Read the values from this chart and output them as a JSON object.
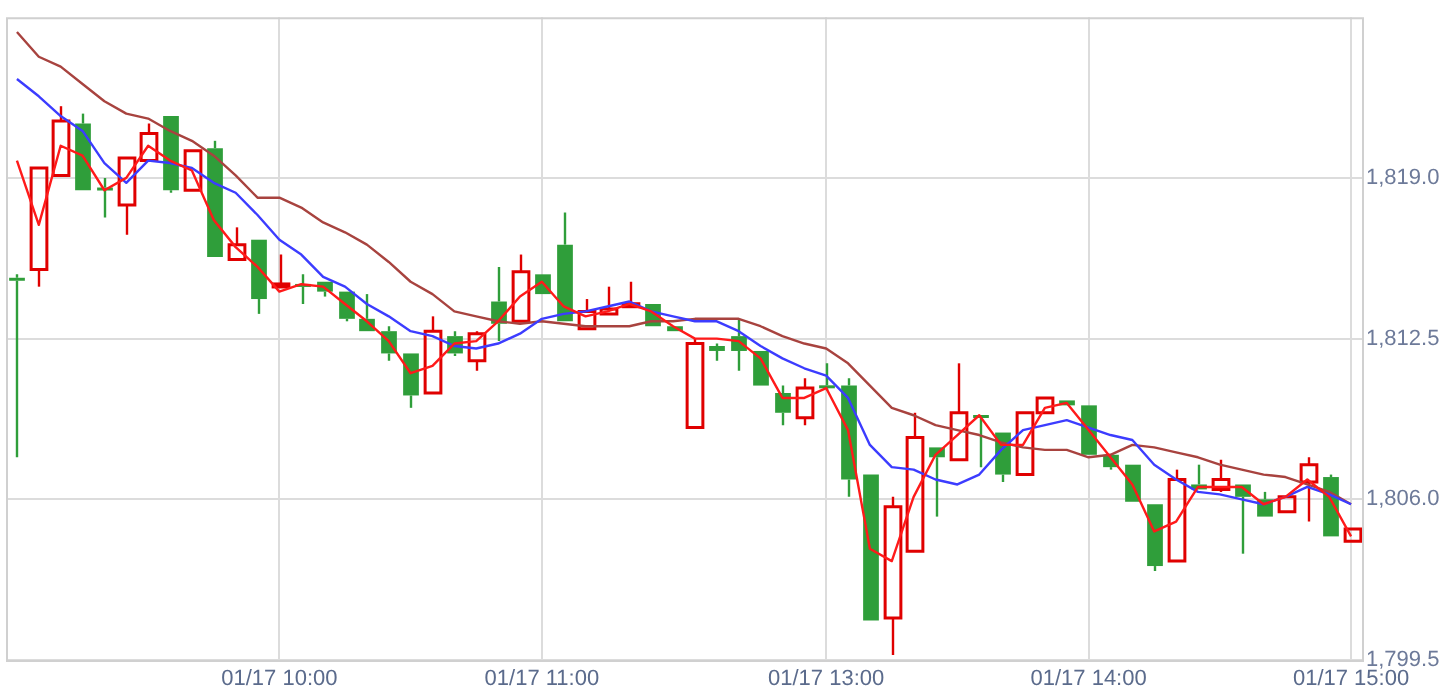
{
  "chart_data": {
    "type": "candlestick",
    "categories": [
      null,
      null,
      null,
      null,
      null,
      null,
      null,
      null,
      null,
      null,
      null,
      null,
      "01/17 10:00",
      null,
      null,
      null,
      null,
      null,
      null,
      null,
      null,
      null,
      null,
      null,
      "01/17 11:00",
      null,
      null,
      null,
      null,
      null,
      null,
      null,
      null,
      null,
      null,
      null,
      null,
      "01/17 13:00",
      null,
      null,
      null,
      null,
      null,
      null,
      null,
      null,
      null,
      null,
      null,
      "01/17 14:00",
      null,
      null,
      null,
      null,
      null,
      null,
      null,
      null,
      null,
      null,
      null,
      "01/17 15:00"
    ],
    "ohlc": [
      [
        1814.9,
        1815.1,
        1807.7,
        1814.9
      ],
      [
        1815.3,
        1819.4,
        1814.6,
        1819.4
      ],
      [
        1819.1,
        1821.9,
        1819.1,
        1821.3
      ],
      [
        1821.2,
        1821.6,
        1818.5,
        1818.5
      ],
      [
        1818.6,
        1819.0,
        1817.4,
        1818.5
      ],
      [
        1817.9,
        1819.8,
        1816.7,
        1819.8
      ],
      [
        1819.7,
        1821.2,
        1819.7,
        1820.8
      ],
      [
        1821.5,
        1821.5,
        1818.4,
        1818.5
      ],
      [
        1818.5,
        1820.1,
        1818.5,
        1820.1
      ],
      [
        1820.2,
        1820.5,
        1815.8,
        1815.8
      ],
      [
        1815.7,
        1817.0,
        1815.7,
        1816.3
      ],
      [
        1816.5,
        1816.5,
        1813.5,
        1814.1
      ],
      [
        1814.6,
        1815.9,
        1814.6,
        1814.7
      ],
      [
        1814.7,
        1815.1,
        1813.9,
        1814.6
      ],
      [
        1814.8,
        1814.8,
        1814.2,
        1814.4
      ],
      [
        1814.4,
        1814.4,
        1813.2,
        1813.3
      ],
      [
        1813.3,
        1814.3,
        1812.8,
        1812.8
      ],
      [
        1812.8,
        1813.0,
        1811.6,
        1811.9
      ],
      [
        1811.9,
        1811.9,
        1809.7,
        1810.2
      ],
      [
        1810.3,
        1813.4,
        1810.3,
        1812.8
      ],
      [
        1812.6,
        1812.8,
        1811.8,
        1811.9
      ],
      [
        1811.6,
        1812.8,
        1811.2,
        1812.7
      ],
      [
        1814.0,
        1815.4,
        1812.4,
        1813.1
      ],
      [
        1813.2,
        1815.9,
        1813.2,
        1815.2
      ],
      [
        1815.1,
        1815.1,
        1814.3,
        1814.3
      ],
      [
        1816.3,
        1817.6,
        1813.2,
        1813.2
      ],
      [
        1812.9,
        1814.1,
        1812.9,
        1813.6
      ],
      [
        1813.5,
        1814.6,
        1813.5,
        1813.7
      ],
      [
        1813.8,
        1814.8,
        1813.8,
        1813.9
      ],
      [
        1813.9,
        1813.9,
        1813.0,
        1813.0
      ],
      [
        1813.0,
        1813.0,
        1812.8,
        1812.8
      ],
      [
        1808.9,
        1812.5,
        1808.9,
        1812.3
      ],
      [
        1812.2,
        1812.3,
        1811.6,
        1812.0
      ],
      [
        1812.6,
        1813.3,
        1811.2,
        1812.0
      ],
      [
        1812.0,
        1812.0,
        1810.6,
        1810.6
      ],
      [
        1810.3,
        1810.6,
        1809.0,
        1809.5
      ],
      [
        1809.3,
        1810.9,
        1809.0,
        1810.5
      ],
      [
        1810.6,
        1811.5,
        1810.4,
        1810.5
      ],
      [
        1810.6,
        1810.9,
        1806.1,
        1806.8
      ],
      [
        1807.0,
        1807.0,
        1801.1,
        1801.1
      ],
      [
        1801.2,
        1806.1,
        1799.7,
        1805.7
      ],
      [
        1803.9,
        1809.5,
        1803.9,
        1808.5
      ],
      [
        1808.1,
        1808.1,
        1805.3,
        1807.7
      ],
      [
        1807.6,
        1811.5,
        1807.6,
        1809.5
      ],
      [
        1809.4,
        1809.4,
        1807.3,
        1809.3
      ],
      [
        1808.7,
        1808.7,
        1806.7,
        1807.0
      ],
      [
        1807.0,
        1809.5,
        1807.0,
        1809.5
      ],
      [
        1809.5,
        1810.1,
        1809.5,
        1810.1
      ],
      [
        1810.0,
        1810.0,
        1809.8,
        1809.8
      ],
      [
        1809.8,
        1809.8,
        1807.8,
        1807.8
      ],
      [
        1807.8,
        1807.8,
        1807.2,
        1807.3
      ],
      [
        1807.4,
        1807.4,
        1805.9,
        1805.9
      ],
      [
        1805.8,
        1805.8,
        1803.1,
        1803.3
      ],
      [
        1803.5,
        1807.2,
        1803.5,
        1806.8
      ],
      [
        1806.6,
        1807.4,
        1806.4,
        1806.4
      ],
      [
        1806.4,
        1807.6,
        1806.3,
        1806.8
      ],
      [
        1806.6,
        1806.6,
        1803.8,
        1806.1
      ],
      [
        1806.0,
        1806.3,
        1805.3,
        1805.3
      ],
      [
        1805.5,
        1806.1,
        1805.5,
        1806.1
      ],
      [
        1806.7,
        1807.7,
        1805.1,
        1807.4
      ],
      [
        1806.9,
        1807.0,
        1804.5,
        1804.5
      ],
      [
        1804.3,
        1804.8,
        1804.3,
        1804.8
      ]
    ],
    "colors": [
      "#2f9e3a",
      "#e00000",
      "#e00000",
      "#2f9e3a",
      "#2f9e3a",
      "#e00000",
      "#e00000",
      "#2f9e3a",
      "#e00000",
      "#2f9e3a",
      "#e00000",
      "#2f9e3a",
      "#e00000",
      "#2f9e3a",
      "#2f9e3a",
      "#2f9e3a",
      "#2f9e3a",
      "#2f9e3a",
      "#2f9e3a",
      "#e00000",
      "#2f9e3a",
      "#e00000",
      "#2f9e3a",
      "#e00000",
      "#2f9e3a",
      "#2f9e3a",
      "#e00000",
      "#e00000",
      "#e00000",
      "#2f9e3a",
      "#2f9e3a",
      "#e00000",
      "#2f9e3a",
      "#2f9e3a",
      "#2f9e3a",
      "#2f9e3a",
      "#e00000",
      "#2f9e3a",
      "#2f9e3a",
      "#2f9e3a",
      "#e00000",
      "#e00000",
      "#2f9e3a",
      "#e00000",
      "#2f9e3a",
      "#2f9e3a",
      "#e00000",
      "#e00000",
      "#2f9e3a",
      "#2f9e3a",
      "#2f9e3a",
      "#2f9e3a",
      "#2f9e3a",
      "#e00000",
      "#2f9e3a",
      "#e00000",
      "#2f9e3a",
      "#2f9e3a",
      "#e00000",
      "#e00000",
      "#2f9e3a",
      "#e00000"
    ],
    "series": [
      {
        "type": "line",
        "color": "#ff1a1a",
        "values": [
          1819.7,
          1817.1,
          1820.3,
          1819.9,
          1818.5,
          1819.0,
          1820.3,
          1819.7,
          1819.3,
          1817.3,
          1816.2,
          1815.4,
          1814.4,
          1814.7,
          1814.6,
          1813.9,
          1813.2,
          1812.4,
          1811.1,
          1811.4,
          1812.3,
          1812.4,
          1813.2,
          1814.2,
          1814.8,
          1813.8,
          1813.4,
          1813.6,
          1813.9,
          1813.6,
          1813.0,
          1812.5,
          1812.5,
          1812.4,
          1811.7,
          1810.1,
          1810.1,
          1810.5,
          1808.8,
          1804.0,
          1803.5,
          1806.1,
          1807.8,
          1808.6,
          1809.4,
          1808.2,
          1808.2,
          1809.7,
          1809.9,
          1808.8,
          1807.7,
          1806.6,
          1804.7,
          1805.1,
          1806.5,
          1806.5,
          1806.5,
          1805.8,
          1806.1,
          1806.8,
          1806.1,
          1804.5
        ]
      },
      {
        "type": "line",
        "color": "#3c3cff",
        "values": [
          1823.0,
          1822.3,
          1821.5,
          1820.9,
          1819.6,
          1818.8,
          1819.7,
          1819.6,
          1819.4,
          1818.8,
          1818.4,
          1817.5,
          1816.5,
          1815.9,
          1815.0,
          1814.6,
          1813.9,
          1813.4,
          1812.8,
          1812.6,
          1812.2,
          1812.1,
          1812.3,
          1812.7,
          1813.3,
          1813.5,
          1813.6,
          1813.8,
          1814.0,
          1813.6,
          1813.4,
          1813.2,
          1813.2,
          1812.8,
          1812.2,
          1811.7,
          1811.3,
          1811.0,
          1810.1,
          1808.2,
          1807.3,
          1807.2,
          1806.8,
          1806.6,
          1807.0,
          1808.0,
          1808.8,
          1809.0,
          1809.2,
          1808.9,
          1808.6,
          1808.4,
          1807.4,
          1806.8,
          1806.3,
          1806.2,
          1806.0,
          1805.8,
          1806.1,
          1806.5,
          1806.2,
          1805.8
        ]
      },
      {
        "type": "line",
        "color": "#a8433f",
        "values": [
          1824.9,
          1823.9,
          1823.5,
          1822.8,
          1822.1,
          1821.6,
          1821.4,
          1820.9,
          1820.5,
          1819.9,
          1819.1,
          1818.2,
          1818.2,
          1817.8,
          1817.2,
          1816.8,
          1816.3,
          1815.6,
          1814.8,
          1814.3,
          1813.6,
          1813.4,
          1813.2,
          1813.1,
          1813.2,
          1813.1,
          1813.0,
          1813.0,
          1813.0,
          1813.2,
          1813.2,
          1813.3,
          1813.3,
          1813.3,
          1813.0,
          1812.6,
          1812.3,
          1812.1,
          1811.5,
          1810.6,
          1809.7,
          1809.4,
          1809.0,
          1808.8,
          1808.6,
          1808.3,
          1808.1,
          1808.0,
          1808.0,
          1807.7,
          1807.8,
          1808.2,
          1808.1,
          1807.9,
          1807.7,
          1807.4,
          1807.2,
          1807.0,
          1806.9,
          1806.6,
          1806.3,
          1805.8
        ]
      }
    ],
    "ylim": [
      1799.5,
      1825.5
    ],
    "yticks": [
      {
        "value": 1799.5,
        "label": "1,799.5"
      },
      {
        "value": 1806,
        "label": "1,806.0"
      },
      {
        "value": 1812.5,
        "label": "1,812.5"
      },
      {
        "value": 1819,
        "label": "1,819.0"
      }
    ],
    "grid": true,
    "legend": false,
    "marker": "none"
  }
}
